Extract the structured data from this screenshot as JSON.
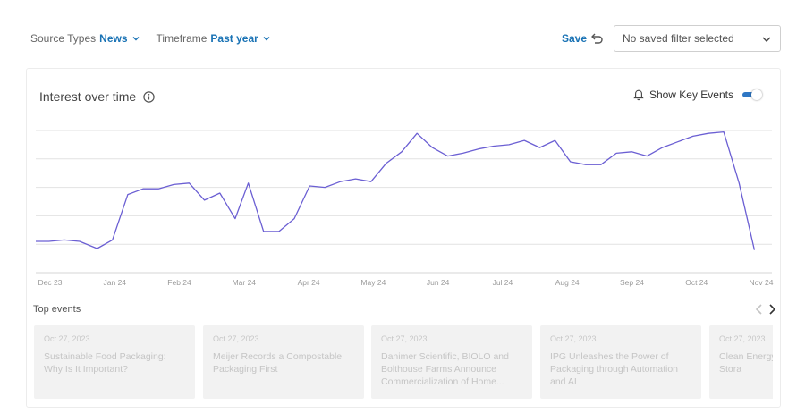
{
  "filters": [
    {
      "label": "Source Types",
      "value": "News"
    },
    {
      "label": "Timeframe",
      "value": "Past year"
    }
  ],
  "save_label": "Save",
  "saved_filter_placeholder": "No saved filter selected",
  "card": {
    "title": "Interest over time",
    "key_events_label": "Show Key Events",
    "key_events_on": true
  },
  "chart_data": {
    "type": "line",
    "title": "Interest over time",
    "x_ticks": [
      "Dec 23",
      "Jan 24",
      "Feb 24",
      "Mar 24",
      "Apr 24",
      "May 24",
      "Jun 24",
      "Jul 24",
      "Aug 24",
      "Sep 24",
      "Oct 24",
      "Nov 24"
    ],
    "x_start": "2023-12-01",
    "x_end": "2024-11-01",
    "grid": true,
    "line_color": "#6b5fd3",
    "series": [
      {
        "values": [
          [
            "2023-12-01",
            22
          ],
          [
            "2023-12-07",
            22
          ],
          [
            "2023-12-14",
            23
          ],
          [
            "2023-12-21",
            22
          ],
          [
            "2023-12-29",
            17
          ],
          [
            "2024-01-05",
            23
          ],
          [
            "2024-01-12",
            55
          ],
          [
            "2024-01-19",
            59
          ],
          [
            "2024-01-26",
            59
          ],
          [
            "2024-02-02",
            62
          ],
          [
            "2024-02-09",
            63
          ],
          [
            "2024-02-16",
            51
          ],
          [
            "2024-02-23",
            56
          ],
          [
            "2024-03-01",
            38
          ],
          [
            "2024-03-07",
            63
          ],
          [
            "2024-03-14",
            29
          ],
          [
            "2024-03-21",
            29
          ],
          [
            "2024-03-28",
            38
          ],
          [
            "2024-04-04",
            61
          ],
          [
            "2024-04-11",
            60
          ],
          [
            "2024-04-18",
            64
          ],
          [
            "2024-04-25",
            66
          ],
          [
            "2024-05-02",
            64
          ],
          [
            "2024-05-09",
            77
          ],
          [
            "2024-05-16",
            85
          ],
          [
            "2024-05-23",
            98
          ],
          [
            "2024-05-30",
            88
          ],
          [
            "2024-06-06",
            82
          ],
          [
            "2024-06-13",
            84
          ],
          [
            "2024-06-20",
            87
          ],
          [
            "2024-06-27",
            89
          ],
          [
            "2024-07-04",
            90
          ],
          [
            "2024-07-11",
            93
          ],
          [
            "2024-07-18",
            88
          ],
          [
            "2024-07-25",
            93
          ],
          [
            "2024-08-01",
            78
          ],
          [
            "2024-08-08",
            76
          ],
          [
            "2024-08-15",
            76
          ],
          [
            "2024-08-22",
            84
          ],
          [
            "2024-08-29",
            85
          ],
          [
            "2024-09-05",
            82
          ],
          [
            "2024-09-12",
            88
          ],
          [
            "2024-09-19",
            92
          ],
          [
            "2024-09-26",
            96
          ],
          [
            "2024-10-03",
            98
          ],
          [
            "2024-10-10",
            99
          ],
          [
            "2024-10-17",
            63
          ],
          [
            "2024-10-24",
            16
          ]
        ]
      }
    ]
  },
  "top_events": {
    "label": "Top events",
    "items": [
      {
        "date": "Oct 27, 2023",
        "title": "Sustainable Food Packaging: Why Is It Important?"
      },
      {
        "date": "Oct 27, 2023",
        "title": "Meijer Records a Compostable Packaging First"
      },
      {
        "date": "Oct 27, 2023",
        "title": "Danimer Scientific, BIOLO and Bolthouse Farms Announce Commercialization of Home..."
      },
      {
        "date": "Oct 27, 2023",
        "title": "IPG Unleashes the Power of Packaging through Automation and AI"
      },
      {
        "date": "Oct 27, 2023",
        "title": "Clean Energy Michigan: A Energy Stora"
      }
    ]
  }
}
